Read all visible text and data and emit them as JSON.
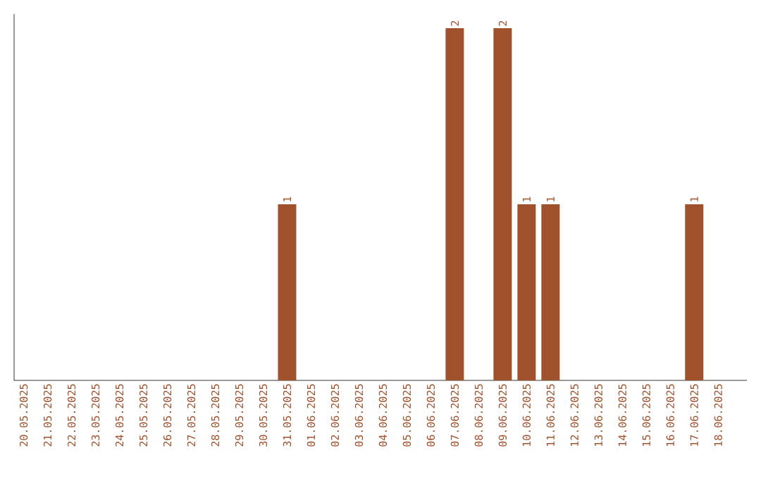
{
  "chart_data": {
    "type": "bar",
    "categories": [
      "20.05.2025",
      "21.05.2025",
      "22.05.2025",
      "23.05.2025",
      "24.05.2025",
      "25.05.2025",
      "26.05.2025",
      "27.05.2025",
      "28.05.2025",
      "29.05.2025",
      "30.05.2025",
      "31.05.2025",
      "01.06.2025",
      "02.06.2025",
      "03.06.2025",
      "04.06.2025",
      "05.06.2025",
      "06.06.2025",
      "07.06.2025",
      "08.06.2025",
      "09.06.2025",
      "10.06.2025",
      "11.06.2025",
      "12.06.2025",
      "13.06.2025",
      "14.06.2025",
      "15.06.2025",
      "16.06.2025",
      "17.06.2025",
      "18.06.2025"
    ],
    "values": [
      0,
      0,
      0,
      0,
      0,
      0,
      0,
      0,
      0,
      0,
      0,
      1,
      0,
      0,
      0,
      0,
      0,
      0,
      2,
      0,
      2,
      1,
      1,
      0,
      0,
      0,
      0,
      0,
      1,
      0
    ],
    "value_labels": [
      null,
      null,
      null,
      null,
      null,
      null,
      null,
      null,
      null,
      null,
      null,
      "1",
      null,
      null,
      null,
      null,
      null,
      null,
      "2",
      null,
      "2",
      "1",
      "1",
      null,
      null,
      null,
      null,
      null,
      "1",
      null
    ],
    "color": "#a0522d"
  }
}
